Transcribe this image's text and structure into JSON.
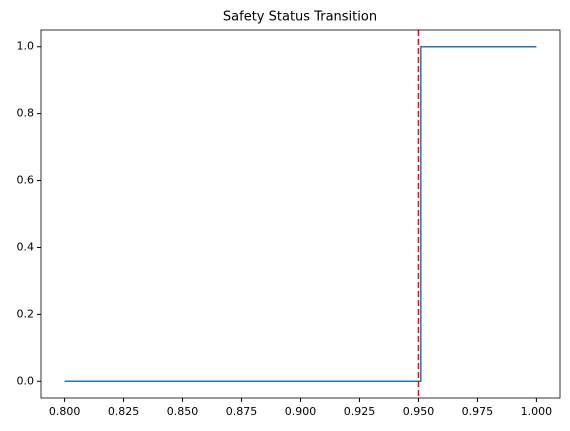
{
  "chart_data": {
    "type": "line",
    "title": "Safety Status Transition",
    "x": [
      0.8,
      0.951,
      0.951,
      1.0
    ],
    "values": [
      0,
      0,
      1,
      1
    ],
    "color": "#1f77b4",
    "vline": {
      "x": 0.95,
      "color": "#ff0000",
      "dashed": true
    },
    "xlim": [
      0.79,
      1.01
    ],
    "ylim": [
      -0.05,
      1.05
    ],
    "xticks": [
      {
        "value": 0.8,
        "label": "0.800"
      },
      {
        "value": 0.825,
        "label": "0.825"
      },
      {
        "value": 0.85,
        "label": "0.850"
      },
      {
        "value": 0.875,
        "label": "0.875"
      },
      {
        "value": 0.9,
        "label": "0.900"
      },
      {
        "value": 0.925,
        "label": "0.925"
      },
      {
        "value": 0.95,
        "label": "0.950"
      },
      {
        "value": 0.975,
        "label": "0.975"
      },
      {
        "value": 1.0,
        "label": "1.000"
      }
    ],
    "yticks": [
      {
        "value": 0,
        "label": "0.0"
      },
      {
        "value": 0.2,
        "label": "0.2"
      },
      {
        "value": 0.4,
        "label": "0.4"
      },
      {
        "value": 0.6,
        "label": "0.6"
      },
      {
        "value": 0.8,
        "label": "0.8"
      },
      {
        "value": 1.0,
        "label": "1.0"
      }
    ]
  }
}
